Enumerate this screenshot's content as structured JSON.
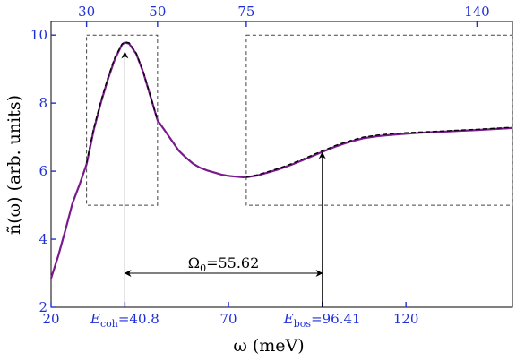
{
  "chart_data": {
    "type": "line",
    "xlabel": "ω (meV)",
    "ylabel": "ñ(ω) (arb. units)",
    "xlim": [
      20,
      150
    ],
    "ylim": [
      2,
      10.4
    ],
    "x_ticks": [
      20,
      70,
      120
    ],
    "y_ticks": [
      2,
      4,
      6,
      8,
      10
    ],
    "top_ticks": [
      30,
      50,
      75,
      140
    ],
    "bottom_ticks_inline": [
      40.8,
      96.41
    ],
    "grid": false,
    "series": [
      {
        "style": "solid",
        "color": "#7a1a8e",
        "x": [
          20,
          22,
          24,
          26,
          28,
          30,
          31,
          32,
          34,
          36,
          38,
          40,
          40.8,
          42,
          44,
          46,
          48,
          50,
          52,
          54,
          56,
          58,
          60,
          62,
          64,
          66,
          68,
          70,
          72,
          74,
          75,
          78,
          80,
          84,
          88,
          92,
          96,
          100,
          104,
          108,
          112,
          116,
          120,
          124,
          128,
          132,
          136,
          140,
          145,
          150
        ],
        "y": [
          2.85,
          3.5,
          4.25,
          5.05,
          5.6,
          6.2,
          6.7,
          7.2,
          8.0,
          8.7,
          9.3,
          9.72,
          9.78,
          9.75,
          9.45,
          8.9,
          8.2,
          7.5,
          7.2,
          6.9,
          6.6,
          6.4,
          6.22,
          6.1,
          6.02,
          5.96,
          5.9,
          5.86,
          5.84,
          5.82,
          5.82,
          5.87,
          5.93,
          6.05,
          6.2,
          6.37,
          6.55,
          6.72,
          6.86,
          6.97,
          7.03,
          7.07,
          7.1,
          7.13,
          7.15,
          7.17,
          7.19,
          7.21,
          7.24,
          7.27
        ]
      },
      {
        "style": "dashed",
        "color": "#000000",
        "x": [
          30,
          32,
          34,
          36,
          38,
          40,
          40.8,
          42,
          44,
          46,
          48,
          50
        ],
        "y": [
          6.25,
          7.25,
          8.05,
          8.75,
          9.35,
          9.74,
          9.8,
          9.77,
          9.47,
          8.92,
          8.22,
          7.5
        ]
      },
      {
        "style": "dashed",
        "color": "#000000",
        "x": [
          75,
          78,
          80,
          84,
          88,
          92,
          96,
          100,
          104,
          108,
          112,
          116,
          120,
          124,
          128,
          132,
          136,
          140,
          145,
          150
        ],
        "y": [
          5.83,
          5.89,
          5.95,
          6.08,
          6.23,
          6.4,
          6.58,
          6.75,
          6.89,
          7.0,
          7.06,
          7.1,
          7.13,
          7.15,
          7.17,
          7.19,
          7.21,
          7.23,
          7.26,
          7.29
        ]
      }
    ],
    "boxes": [
      {
        "x": [
          30,
          50
        ],
        "y": [
          5.0,
          10.0
        ]
      },
      {
        "x": [
          75,
          150
        ],
        "y": [
          5.0,
          10.0
        ]
      }
    ],
    "annotations": {
      "e_coh": {
        "x": 40.8,
        "y_tip": 9.5,
        "label_prefix": "E",
        "label_sub": "coh",
        "label_value": "=40.8"
      },
      "e_bos": {
        "x": 96.41,
        "y_tip": 6.55,
        "label_prefix": "E",
        "label_sub": "bos",
        "label_value": "=96.41"
      },
      "omega0": {
        "y": 3.0,
        "x_from": 40.8,
        "x_to": 96.41,
        "label_prefix": "Ω",
        "label_sub": "0",
        "label_value": "=55.62"
      }
    }
  }
}
